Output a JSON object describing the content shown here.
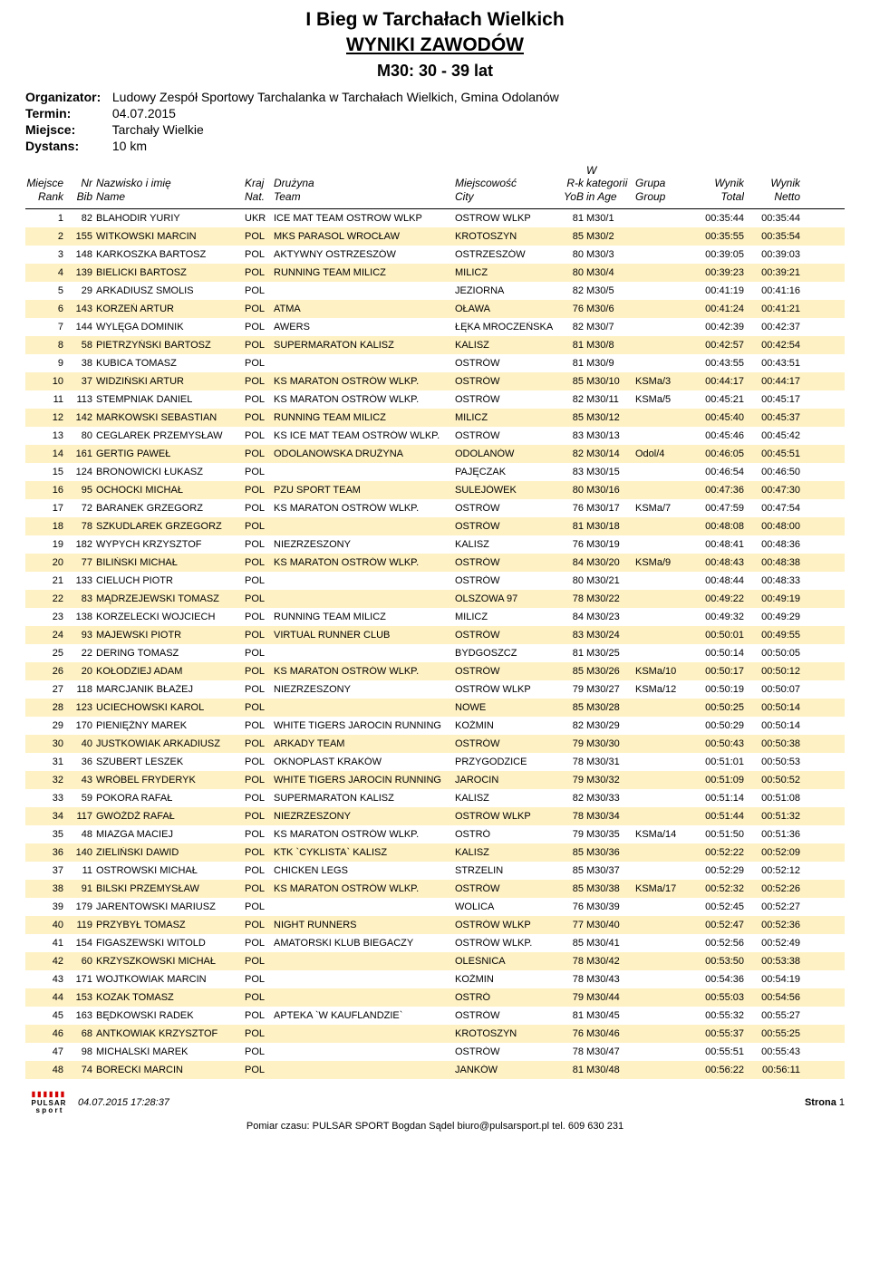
{
  "title": "I Bieg w Tarchałach Wielkich",
  "subtitle": "WYNIKI ZAWODÓW",
  "category": "M30: 30 - 39 lat",
  "meta": {
    "organizer_label": "Organizator:",
    "organizer_value": "Ludowy Zespół Sportowy Tarchalanka w Tarchałach Wielkich, Gmina Odolanów",
    "date_label": "Termin:",
    "date_value": "04.07.2015",
    "place_label": "Miejsce:",
    "place_value": "Tarchały Wielkie",
    "distance_label": "Dystans:",
    "distance_value": "10 km"
  },
  "headers": {
    "rank1": "Miejsce",
    "rank2": "Rank",
    "bib1": "Nr",
    "bib2": "Bib",
    "name1": "Nazwisko i imię",
    "name2": "Name",
    "nat1": "Kraj",
    "nat2": "Nat.",
    "team1": "Drużyna",
    "team2": "Team",
    "city1": "Miejscowość",
    "city2": "City",
    "yob1": "R-k",
    "yob2": "YoB",
    "cat1": "W kategorii",
    "cat2": "in Age",
    "group1": "Grupa",
    "group2": "Group",
    "total1": "Wynik",
    "total2": "Total",
    "netto1": "Wynik",
    "netto2": "Netto"
  },
  "colors": {
    "row_highlight": "#fef1c3",
    "row_normal": "#ffffff",
    "text": "#000000"
  },
  "rows": [
    {
      "rank": 1,
      "bib": 82,
      "name": "BLAHODIR YURIY",
      "nat": "UKR",
      "team": "ICE MAT TEAM OSTROW WLKP",
      "city": "OSTROW WLKP",
      "yob": 81,
      "cat": "M30/1",
      "group": "",
      "total": "00:35:44",
      "netto": "00:35:44"
    },
    {
      "rank": 2,
      "bib": 155,
      "name": "WITKOWSKI MARCIN",
      "nat": "POL",
      "team": "MKS PARASOL WROCŁAW",
      "city": "KROTOSZYN",
      "yob": 85,
      "cat": "M30/2",
      "group": "",
      "total": "00:35:55",
      "netto": "00:35:54"
    },
    {
      "rank": 3,
      "bib": 148,
      "name": "KARKOSZKA BARTOSZ",
      "nat": "POL",
      "team": "AKTYWNY OSTRZESZÓW",
      "city": "OSTRZESZÓW",
      "yob": 80,
      "cat": "M30/3",
      "group": "",
      "total": "00:39:05",
      "netto": "00:39:03"
    },
    {
      "rank": 4,
      "bib": 139,
      "name": "BIELICKI BARTOSZ",
      "nat": "POL",
      "team": "RUNNING TEAM MILICZ",
      "city": "MILICZ",
      "yob": 80,
      "cat": "M30/4",
      "group": "",
      "total": "00:39:23",
      "netto": "00:39:21"
    },
    {
      "rank": 5,
      "bib": 29,
      "name": "ARKADIUSZ SMOLIS",
      "nat": "POL",
      "team": "",
      "city": "JEZIORNA",
      "yob": 82,
      "cat": "M30/5",
      "group": "",
      "total": "00:41:19",
      "netto": "00:41:16"
    },
    {
      "rank": 6,
      "bib": 143,
      "name": "KORZEŃ ARTUR",
      "nat": "POL",
      "team": "ATMA",
      "city": "OŁAWA",
      "yob": 76,
      "cat": "M30/6",
      "group": "",
      "total": "00:41:24",
      "netto": "00:41:21"
    },
    {
      "rank": 7,
      "bib": 144,
      "name": "WYLĘGA DOMINIK",
      "nat": "POL",
      "team": "AWERS",
      "city": "ŁĘKA MROCZEŃSKA",
      "yob": 82,
      "cat": "M30/7",
      "group": "",
      "total": "00:42:39",
      "netto": "00:42:37"
    },
    {
      "rank": 8,
      "bib": 58,
      "name": "PIETRZYŃSKI BARTOSZ",
      "nat": "POL",
      "team": "SUPERMARATON KALISZ",
      "city": "KALISZ",
      "yob": 81,
      "cat": "M30/8",
      "group": "",
      "total": "00:42:57",
      "netto": "00:42:54"
    },
    {
      "rank": 9,
      "bib": 38,
      "name": "KUBICA TOMASZ",
      "nat": "POL",
      "team": "",
      "city": "OSTRÓW",
      "yob": 81,
      "cat": "M30/9",
      "group": "",
      "total": "00:43:55",
      "netto": "00:43:51"
    },
    {
      "rank": 10,
      "bib": 37,
      "name": "WIDZIŃSKI ARTUR",
      "nat": "POL",
      "team": "KS MARATON OSTRÓW WLKP.",
      "city": "OSTRÓW",
      "yob": 85,
      "cat": "M30/10",
      "group": "KSMa/3",
      "total": "00:44:17",
      "netto": "00:44:17"
    },
    {
      "rank": 11,
      "bib": 113,
      "name": "STEMPNIAK DANIEL",
      "nat": "POL",
      "team": "KS MARATON OSTRÓW WLKP.",
      "city": "OSTRÓW",
      "yob": 82,
      "cat": "M30/11",
      "group": "KSMa/5",
      "total": "00:45:21",
      "netto": "00:45:17"
    },
    {
      "rank": 12,
      "bib": 142,
      "name": "MARKOWSKI SEBASTIAN",
      "nat": "POL",
      "team": "RUNNING TEAM MILICZ",
      "city": "MILICZ",
      "yob": 85,
      "cat": "M30/12",
      "group": "",
      "total": "00:45:40",
      "netto": "00:45:37"
    },
    {
      "rank": 13,
      "bib": 80,
      "name": "CEGLAREK PRZEMYSŁAW",
      "nat": "POL",
      "team": "KS ICE MAT TEAM OSTRÓW WLKP.",
      "city": "OSTRÓW",
      "yob": 83,
      "cat": "M30/13",
      "group": "",
      "total": "00:45:46",
      "netto": "00:45:42"
    },
    {
      "rank": 14,
      "bib": 161,
      "name": "GERTIG PAWEŁ",
      "nat": "POL",
      "team": "ODOLANOWSKA DRUŻYNA",
      "city": "ODOLANÓW",
      "yob": 82,
      "cat": "M30/14",
      "group": "Odol/4",
      "total": "00:46:05",
      "netto": "00:45:51"
    },
    {
      "rank": 15,
      "bib": 124,
      "name": "BRONOWICKI ŁUKASZ",
      "nat": "POL",
      "team": "",
      "city": "PAJĘCZAK",
      "yob": 83,
      "cat": "M30/15",
      "group": "",
      "total": "00:46:54",
      "netto": "00:46:50"
    },
    {
      "rank": 16,
      "bib": 95,
      "name": "OCHOCKI MICHAŁ",
      "nat": "POL",
      "team": "PZU SPORT TEAM",
      "city": "SULEJÓWEK",
      "yob": 80,
      "cat": "M30/16",
      "group": "",
      "total": "00:47:36",
      "netto": "00:47:30"
    },
    {
      "rank": 17,
      "bib": 72,
      "name": "BARANEK GRZEGORZ",
      "nat": "POL",
      "team": "KS MARATON OSTRÓW WLKP.",
      "city": "OSTRÓW",
      "yob": 76,
      "cat": "M30/17",
      "group": "KSMa/7",
      "total": "00:47:59",
      "netto": "00:47:54"
    },
    {
      "rank": 18,
      "bib": 78,
      "name": "SZKUDLAREK GRZEGORZ",
      "nat": "POL",
      "team": "",
      "city": "OSTRÓW",
      "yob": 81,
      "cat": "M30/18",
      "group": "",
      "total": "00:48:08",
      "netto": "00:48:00"
    },
    {
      "rank": 19,
      "bib": 182,
      "name": "WYPYCH KRZYSZTOF",
      "nat": "POL",
      "team": "NIEZRZESZONY",
      "city": "KALISZ",
      "yob": 76,
      "cat": "M30/19",
      "group": "",
      "total": "00:48:41",
      "netto": "00:48:36"
    },
    {
      "rank": 20,
      "bib": 77,
      "name": "BILIŃSKI MICHAŁ",
      "nat": "POL",
      "team": "KS MARATON OSTRÓW WLKP.",
      "city": "OSTRÓW",
      "yob": 84,
      "cat": "M30/20",
      "group": "KSMa/9",
      "total": "00:48:43",
      "netto": "00:48:38"
    },
    {
      "rank": 21,
      "bib": 133,
      "name": "CIELUCH PIOTR",
      "nat": "POL",
      "team": "",
      "city": "OSTRÓW",
      "yob": 80,
      "cat": "M30/21",
      "group": "",
      "total": "00:48:44",
      "netto": "00:48:33"
    },
    {
      "rank": 22,
      "bib": 83,
      "name": "MĄDRZEJEWSKI TOMASZ",
      "nat": "POL",
      "team": "",
      "city": "OLSZOWA 97",
      "yob": 78,
      "cat": "M30/22",
      "group": "",
      "total": "00:49:22",
      "netto": "00:49:19"
    },
    {
      "rank": 23,
      "bib": 138,
      "name": "KORZELECKI WOJCIECH",
      "nat": "POL",
      "team": "RUNNING TEAM MILICZ",
      "city": "MILICZ",
      "yob": 84,
      "cat": "M30/23",
      "group": "",
      "total": "00:49:32",
      "netto": "00:49:29"
    },
    {
      "rank": 24,
      "bib": 93,
      "name": "MAJEWSKI PIOTR",
      "nat": "POL",
      "team": "VIRTUAL RUNNER CLUB",
      "city": "OSTRÓW",
      "yob": 83,
      "cat": "M30/24",
      "group": "",
      "total": "00:50:01",
      "netto": "00:49:55"
    },
    {
      "rank": 25,
      "bib": 22,
      "name": "DERING TOMASZ",
      "nat": "POL",
      "team": "",
      "city": "BYDGOSZCZ",
      "yob": 81,
      "cat": "M30/25",
      "group": "",
      "total": "00:50:14",
      "netto": "00:50:05"
    },
    {
      "rank": 26,
      "bib": 20,
      "name": "KOŁODZIEJ ADAM",
      "nat": "POL",
      "team": "KS MARATON OSTRÓW WLKP.",
      "city": "OSTRÓW",
      "yob": 85,
      "cat": "M30/26",
      "group": "KSMa/10",
      "total": "00:50:17",
      "netto": "00:50:12"
    },
    {
      "rank": 27,
      "bib": 118,
      "name": "MARCJANIK BŁAŻEJ",
      "nat": "POL",
      "team": "NIEZRZESZONY",
      "city": "OSTRÓW WLKP",
      "yob": 79,
      "cat": "M30/27",
      "group": "KSMa/12",
      "total": "00:50:19",
      "netto": "00:50:07"
    },
    {
      "rank": 28,
      "bib": 123,
      "name": "UCIECHOWSKI KAROL",
      "nat": "POL",
      "team": "",
      "city": "NOWE",
      "yob": 85,
      "cat": "M30/28",
      "group": "",
      "total": "00:50:25",
      "netto": "00:50:14"
    },
    {
      "rank": 29,
      "bib": 170,
      "name": "PIENIĘŻNY MAREK",
      "nat": "POL",
      "team": "WHITE TIGERS JAROCIN RUNNING",
      "city": "KOŹMIN",
      "yob": 82,
      "cat": "M30/29",
      "group": "",
      "total": "00:50:29",
      "netto": "00:50:14"
    },
    {
      "rank": 30,
      "bib": 40,
      "name": "JUSTKOWIAK ARKADIUSZ",
      "nat": "POL",
      "team": "ARKADY TEAM",
      "city": "OSTRÓW",
      "yob": 79,
      "cat": "M30/30",
      "group": "",
      "total": "00:50:43",
      "netto": "00:50:38"
    },
    {
      "rank": 31,
      "bib": 36,
      "name": "SZUBERT LESZEK",
      "nat": "POL",
      "team": "OKNOPLAST KRAKÓW",
      "city": "PRZYGODZICE",
      "yob": 78,
      "cat": "M30/31",
      "group": "",
      "total": "00:51:01",
      "netto": "00:50:53"
    },
    {
      "rank": 32,
      "bib": 43,
      "name": "WRÓBEL FRYDERYK",
      "nat": "POL",
      "team": "WHITE TIGERS JAROCIN RUNNING",
      "city": "JAROCIN",
      "yob": 79,
      "cat": "M30/32",
      "group": "",
      "total": "00:51:09",
      "netto": "00:50:52"
    },
    {
      "rank": 33,
      "bib": 59,
      "name": "POKORA RAFAŁ",
      "nat": "POL",
      "team": "SUPERMARATON KALISZ",
      "city": "KALISZ",
      "yob": 82,
      "cat": "M30/33",
      "group": "",
      "total": "00:51:14",
      "netto": "00:51:08"
    },
    {
      "rank": 34,
      "bib": 117,
      "name": "GWÓŹDŹ RAFAŁ",
      "nat": "POL",
      "team": "NIEZRZESZONY",
      "city": "OSTRÓW WLKP",
      "yob": 78,
      "cat": "M30/34",
      "group": "",
      "total": "00:51:44",
      "netto": "00:51:32"
    },
    {
      "rank": 35,
      "bib": 48,
      "name": "MIAZGA MACIEJ",
      "nat": "POL",
      "team": "KS MARATON OSTRÓW WLKP.",
      "city": "OSTRÓ",
      "yob": 79,
      "cat": "M30/35",
      "group": "KSMa/14",
      "total": "00:51:50",
      "netto": "00:51:36"
    },
    {
      "rank": 36,
      "bib": 140,
      "name": "ZIELIŃSKI DAWID",
      "nat": "POL",
      "team": "KTK `CYKLISTA` KALISZ",
      "city": "KALISZ",
      "yob": 85,
      "cat": "M30/36",
      "group": "",
      "total": "00:52:22",
      "netto": "00:52:09"
    },
    {
      "rank": 37,
      "bib": 11,
      "name": "OSTROWSKI MICHAŁ",
      "nat": "POL",
      "team": "CHICKEN LEGS",
      "city": "STRZELIN",
      "yob": 85,
      "cat": "M30/37",
      "group": "",
      "total": "00:52:29",
      "netto": "00:52:12"
    },
    {
      "rank": 38,
      "bib": 91,
      "name": "BILSKI PRZEMYSŁAW",
      "nat": "POL",
      "team": "KS MARATON OSTRÓW WLKP.",
      "city": "OSTRÓW",
      "yob": 85,
      "cat": "M30/38",
      "group": "KSMa/17",
      "total": "00:52:32",
      "netto": "00:52:26"
    },
    {
      "rank": 39,
      "bib": 179,
      "name": "JARENTOWSKI MARIUSZ",
      "nat": "POL",
      "team": "",
      "city": "WOLICA",
      "yob": 76,
      "cat": "M30/39",
      "group": "",
      "total": "00:52:45",
      "netto": "00:52:27"
    },
    {
      "rank": 40,
      "bib": 119,
      "name": "PRZYBYŁ TOMASZ",
      "nat": "POL",
      "team": "NIGHT RUNNERS",
      "city": "OSTRÓW WLKP",
      "yob": 77,
      "cat": "M30/40",
      "group": "",
      "total": "00:52:47",
      "netto": "00:52:36"
    },
    {
      "rank": 41,
      "bib": 154,
      "name": "FIGASZEWSKI WITOLD",
      "nat": "POL",
      "team": "AMATORSKI KLUB BIEGACZY",
      "city": "OSTRÓW WLKP.",
      "yob": 85,
      "cat": "M30/41",
      "group": "",
      "total": "00:52:56",
      "netto": "00:52:49"
    },
    {
      "rank": 42,
      "bib": 60,
      "name": "KRZYSZKOWSKI MICHAŁ",
      "nat": "POL",
      "team": "",
      "city": "OLEŚNICA",
      "yob": 78,
      "cat": "M30/42",
      "group": "",
      "total": "00:53:50",
      "netto": "00:53:38"
    },
    {
      "rank": 43,
      "bib": 171,
      "name": "WOJTKOWIAK MARCIN",
      "nat": "POL",
      "team": "",
      "city": "KOŹMIN",
      "yob": 78,
      "cat": "M30/43",
      "group": "",
      "total": "00:54:36",
      "netto": "00:54:19"
    },
    {
      "rank": 44,
      "bib": 153,
      "name": "KOZAK TOMASZ",
      "nat": "POL",
      "team": "",
      "city": "OSTRÓ",
      "yob": 79,
      "cat": "M30/44",
      "group": "",
      "total": "00:55:03",
      "netto": "00:54:56"
    },
    {
      "rank": 45,
      "bib": 163,
      "name": "BĘDKOWSKI RADEK",
      "nat": "POL",
      "team": "APTEKA `W KAUFLANDZIE`",
      "city": "OSTRÓW",
      "yob": 81,
      "cat": "M30/45",
      "group": "",
      "total": "00:55:32",
      "netto": "00:55:27"
    },
    {
      "rank": 46,
      "bib": 68,
      "name": "ANTKOWIAK KRZYSZTOF",
      "nat": "POL",
      "team": "",
      "city": "KROTOSZYN",
      "yob": 76,
      "cat": "M30/46",
      "group": "",
      "total": "00:55:37",
      "netto": "00:55:25"
    },
    {
      "rank": 47,
      "bib": 98,
      "name": "MICHALSKI MAREK",
      "nat": "POL",
      "team": "",
      "city": "OSTRÓW",
      "yob": 78,
      "cat": "M30/47",
      "group": "",
      "total": "00:55:51",
      "netto": "00:55:43"
    },
    {
      "rank": 48,
      "bib": 74,
      "name": "BORECKI MARCIN",
      "nat": "POL",
      "team": "",
      "city": "JANKÓW",
      "yob": 81,
      "cat": "M30/48",
      "group": "",
      "total": "00:56:22",
      "netto": "00:56:11"
    }
  ],
  "footer": {
    "datetime": "04.07.2015 17:28:37",
    "page_label": "Strona",
    "page_num": "1",
    "credit": "Pomiar czasu: PULSAR SPORT Bogdan Sądel biuro@pulsarsport.pl tel. 609 630 231",
    "logo_top": "▮▮▮▮▮▮",
    "logo_mid": "PULSAR",
    "logo_sub": "s p o r t"
  }
}
